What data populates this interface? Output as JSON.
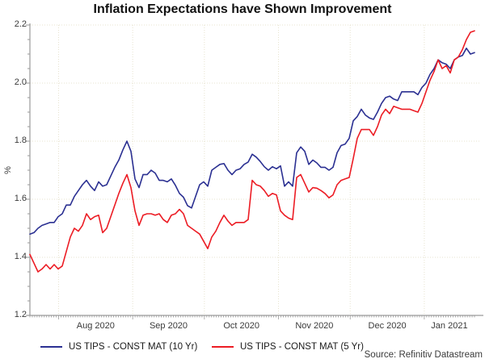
{
  "source": "Source: Refinitiv Datastream",
  "colors": {
    "series_10yr": "#2b3092",
    "series_5yr": "#ec1c24",
    "grid": "#e7e3cf",
    "axis": "#9a9a9a",
    "text": "#3a3a3a"
  },
  "chart_data": {
    "type": "line",
    "title": "Inflation Expectations have Shown Improvement",
    "xlabel": "",
    "ylabel": "%",
    "ylim": [
      1.2,
      2.2
    ],
    "y_ticks": [
      "1.2",
      "1.4",
      "1.6",
      "1.8",
      "2.0",
      "2.2"
    ],
    "y_minor_step": 0.05,
    "grid": "dotted",
    "legend_position": "bottom",
    "x_range_days": 186,
    "x_start_date_approx": "2020-07-20",
    "x_end_date_approx": "2021-01-22",
    "month_boundaries_days": [
      12,
      43,
      73,
      104,
      134,
      165
    ],
    "x_tick_labels": [
      "Aug 2020",
      "Sep 2020",
      "Oct 2020",
      "Nov 2020",
      "Dec 2020",
      "Jan 2021"
    ],
    "series": [
      {
        "name": "US TIPS - CONST MAT (10 Yr)",
        "color": "#2b3092",
        "values": [
          1.48,
          1.485,
          1.5,
          1.51,
          1.515,
          1.52,
          1.52,
          1.54,
          1.55,
          1.58,
          1.58,
          1.61,
          1.63,
          1.65,
          1.665,
          1.645,
          1.63,
          1.66,
          1.645,
          1.65,
          1.68,
          1.71,
          1.735,
          1.77,
          1.8,
          1.765,
          1.67,
          1.64,
          1.685,
          1.685,
          1.7,
          1.69,
          1.665,
          1.665,
          1.66,
          1.67,
          1.648,
          1.62,
          1.607,
          1.578,
          1.57,
          1.61,
          1.65,
          1.66,
          1.645,
          1.7,
          1.71,
          1.72,
          1.723,
          1.7,
          1.685,
          1.7,
          1.705,
          1.72,
          1.728,
          1.755,
          1.745,
          1.73,
          1.712,
          1.7,
          1.712,
          1.705,
          1.715,
          1.645,
          1.66,
          1.645,
          1.76,
          1.78,
          1.765,
          1.72,
          1.735,
          1.725,
          1.71,
          1.71,
          1.7,
          1.71,
          1.76,
          1.785,
          1.79,
          1.81,
          1.87,
          1.885,
          1.91,
          1.89,
          1.88,
          1.875,
          1.9,
          1.93,
          1.95,
          1.955,
          1.945,
          1.94,
          1.97,
          1.97,
          1.97,
          1.97,
          1.96,
          1.985,
          2.0,
          2.03,
          2.05,
          2.08,
          2.07,
          2.065,
          2.05,
          2.08,
          2.09,
          2.095,
          2.12,
          2.1,
          2.105
        ]
      },
      {
        "name": "US TIPS - CONST MAT (5 Yr)",
        "color": "#ec1c24",
        "values": [
          1.41,
          1.38,
          1.35,
          1.36,
          1.375,
          1.36,
          1.375,
          1.36,
          1.37,
          1.42,
          1.47,
          1.5,
          1.49,
          1.51,
          1.55,
          1.53,
          1.54,
          1.545,
          1.485,
          1.5,
          1.54,
          1.58,
          1.62,
          1.655,
          1.685,
          1.64,
          1.56,
          1.51,
          1.545,
          1.55,
          1.55,
          1.545,
          1.55,
          1.53,
          1.52,
          1.545,
          1.55,
          1.565,
          1.55,
          1.51,
          1.5,
          1.49,
          1.48,
          1.455,
          1.43,
          1.47,
          1.49,
          1.52,
          1.545,
          1.525,
          1.51,
          1.52,
          1.52,
          1.52,
          1.53,
          1.665,
          1.65,
          1.645,
          1.63,
          1.61,
          1.62,
          1.615,
          1.56,
          1.545,
          1.535,
          1.53,
          1.675,
          1.685,
          1.655,
          1.625,
          1.64,
          1.638,
          1.63,
          1.62,
          1.605,
          1.615,
          1.65,
          1.665,
          1.67,
          1.675,
          1.74,
          1.81,
          1.84,
          1.84,
          1.84,
          1.82,
          1.85,
          1.89,
          1.91,
          1.895,
          1.92,
          1.915,
          1.91,
          1.91,
          1.91,
          1.905,
          1.9,
          1.93,
          1.97,
          2.01,
          2.04,
          2.08,
          2.05,
          2.06,
          2.035,
          2.08,
          2.09,
          2.115,
          2.15,
          2.175,
          2.18
        ]
      }
    ]
  }
}
